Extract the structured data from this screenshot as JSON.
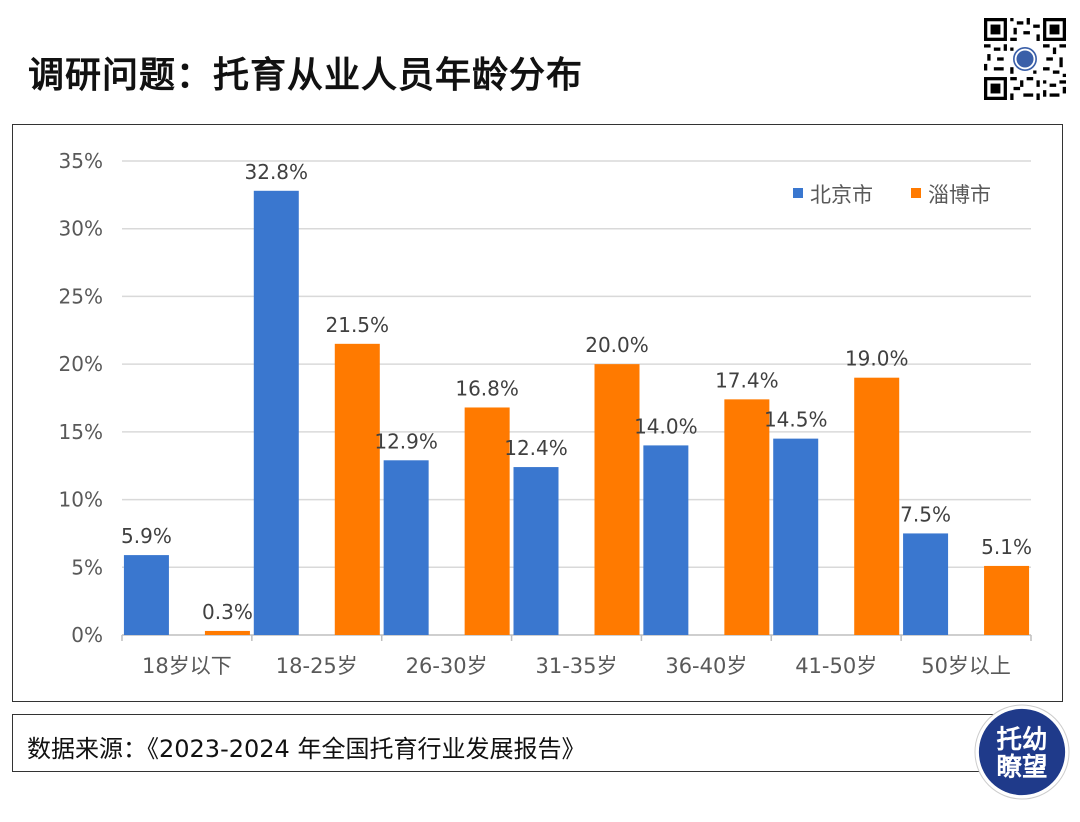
{
  "header": {
    "title": "调研问题：托育从业人员年龄分布"
  },
  "footer": {
    "source": "数据来源：《2023-2024 年全国托育行业发展报告》",
    "logo_line1": "托幼",
    "logo_line2": "瞭望"
  },
  "colors": {
    "beijing": "#3A77CF",
    "zibo": "#FF7A00",
    "grid": "#D9D9D9",
    "text": "#595959"
  },
  "chart_data": {
    "type": "bar",
    "title": "",
    "xlabel": "",
    "ylabel": "",
    "categories": [
      "18岁以下",
      "18-25岁",
      "26-30岁",
      "31-35岁",
      "36-40岁",
      "41-50岁",
      "50岁以上"
    ],
    "series": [
      {
        "name": "北京市",
        "values": [
          5.9,
          32.8,
          12.9,
          12.4,
          14.0,
          14.5,
          7.5
        ],
        "labels": [
          "5.9%",
          "32.8%",
          "12.9%",
          "12.4%",
          "14.0%",
          "14.5%",
          "7.5%"
        ]
      },
      {
        "name": "淄博市",
        "values": [
          0.3,
          21.5,
          16.8,
          20.0,
          17.4,
          19.0,
          5.1
        ],
        "labels": [
          "0.3%",
          "21.5%",
          "16.8%",
          "20.0%",
          "17.4%",
          "19.0%",
          "5.1%"
        ]
      }
    ],
    "ylim": [
      0,
      35
    ],
    "yticks": [
      "0%",
      "5%",
      "10%",
      "15%",
      "20%",
      "25%",
      "30%",
      "35%"
    ],
    "grid": true,
    "legend": "top-right"
  }
}
